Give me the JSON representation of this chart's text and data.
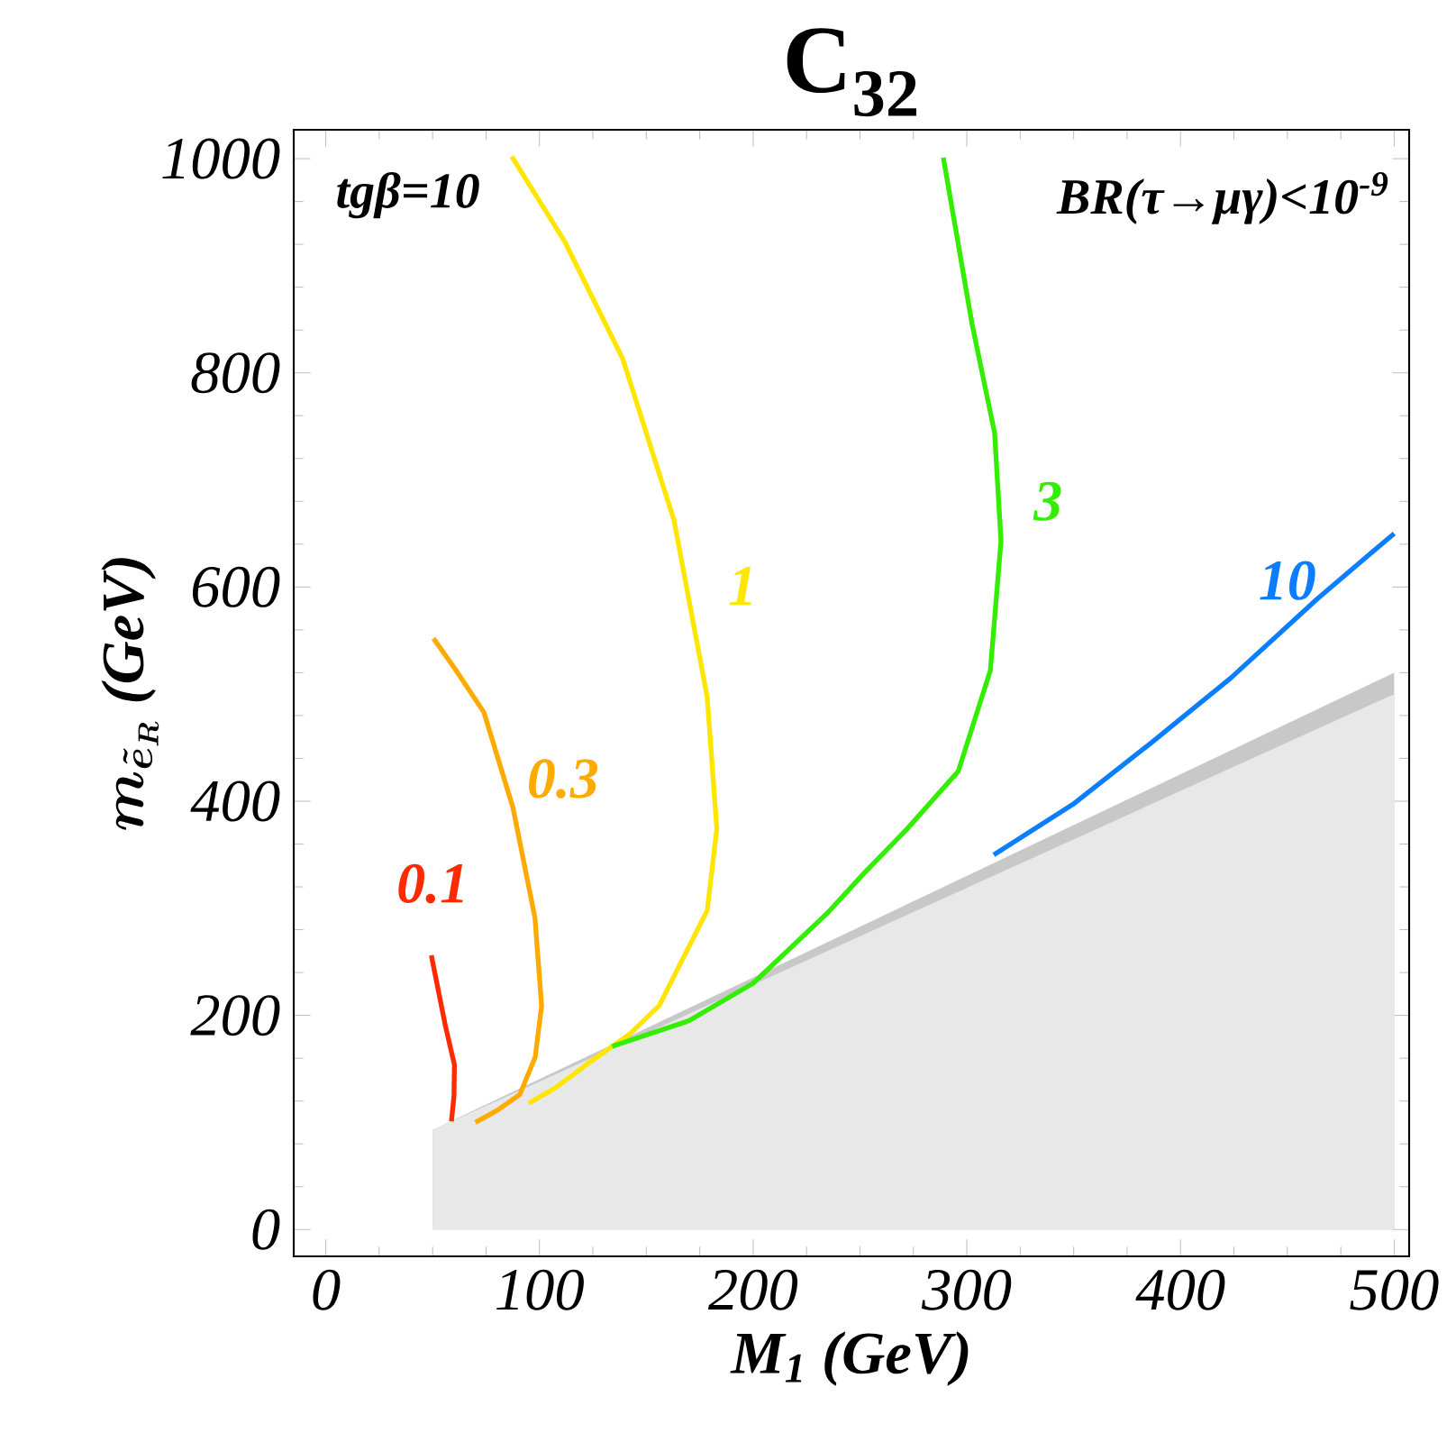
{
  "chart_data": {
    "type": "line",
    "title": "C$_{32}$",
    "xlabel": "M$_{1}$ (GeV)",
    "ylabel": "m_{\\tilde{e}_R}\\ \\textbf{(GeV)}",
    "annotations": [
      "tgβ=10",
      "BR(τ→μγ)<10$^{-9}$"
    ],
    "xlim": [
      -15,
      507
    ],
    "ylim": [
      -25,
      1027
    ],
    "xticks": [
      0,
      100,
      200,
      300,
      400,
      500
    ],
    "yticks": [
      0,
      200,
      400,
      600,
      800,
      1000
    ],
    "grid": false,
    "legend": false,
    "line_style": "solid",
    "marker": "none",
    "series": [
      {
        "type": "area",
        "color": "#c8c8c8",
        "x": [
          50,
          500
        ],
        "values": [
          93,
          520
        ]
      },
      {
        "type": "area",
        "color": "#e8e8e8",
        "x": [
          50,
          500
        ],
        "values": [
          93,
          500
        ]
      },
      {
        "name": "0.1",
        "color": "#ff2a00",
        "x": [
          49.4,
          53,
          56,
          60.2,
          60,
          58.8
        ],
        "values": [
          256,
          220,
          190,
          154,
          125,
          101
        ]
      },
      {
        "name": "0.3",
        "color": "#ffaa00",
        "x": [
          50.4,
          60,
          74,
          87.6,
          97.9,
          101,
          98,
          90.8,
          80,
          70
        ],
        "values": [
          552,
          525,
          483,
          394,
          291,
          209,
          161,
          126,
          111,
          100
        ]
      },
      {
        "name": "1",
        "color": "#ffe600",
        "x": [
          87,
          111.7,
          139,
          163,
          178.5,
          183,
          178.5,
          156,
          142.5,
          122,
          108,
          95
        ],
        "values": [
          1002,
          923,
          813,
          662,
          497,
          374,
          298,
          209,
          183,
          154,
          133,
          118
        ]
      },
      {
        "name": "3",
        "color": "#33ee00",
        "x": [
          289,
          302.5,
          313,
          316,
          311,
          296,
          272,
          252,
          235,
          200,
          170,
          134
        ],
        "values": [
          1001,
          845,
          744,
          643,
          522,
          428,
          374,
          333,
          296,
          230,
          195,
          171
        ]
      },
      {
        "name": "10",
        "color": "#0a7eff",
        "x": [
          312.6,
          326,
          349.6,
          386.6,
          423.5,
          464,
          500
        ],
        "values": [
          350,
          367,
          397,
          455,
          515,
          589,
          650
        ]
      }
    ]
  }
}
